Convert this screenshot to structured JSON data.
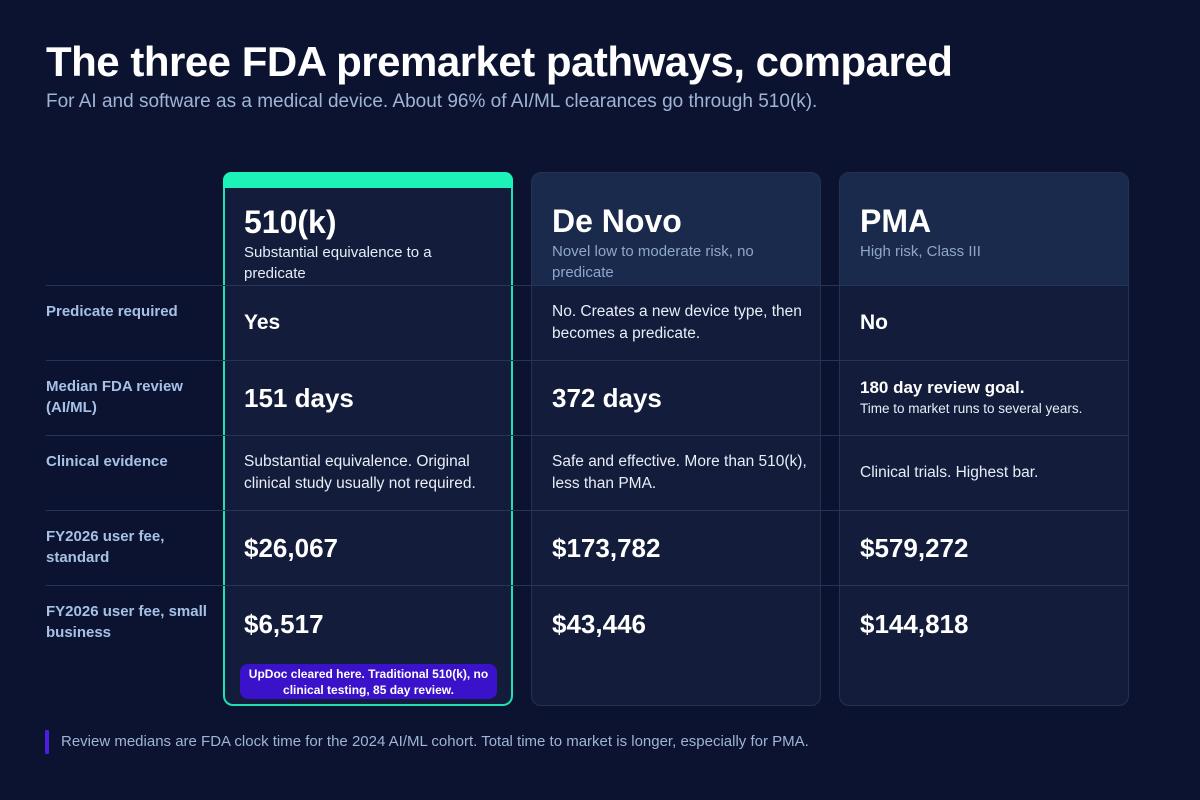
{
  "header": {
    "title": "The three FDA premarket pathways, compared",
    "subtitle": "For AI and software as a medical device. About 96% of AI/ML clearances go through 510(k)."
  },
  "columns": [
    {
      "title": "510(k)",
      "subtitle": "Substantial equivalence to a predicate",
      "highlighted": true,
      "accent": "#1df2b9"
    },
    {
      "title": "De Novo",
      "subtitle": "Novel low to moderate risk, no predicate"
    },
    {
      "title": "PMA",
      "subtitle": "High risk, Class III"
    }
  ],
  "rows": [
    {
      "label": "Predicate required",
      "cells": [
        "Yes",
        "No. Creates a new device type, then becomes a predicate.",
        "No"
      ]
    },
    {
      "label": "Median FDA review (AI/ML)",
      "cells": [
        "151 days",
        "372 days"
      ],
      "pma_strong": "180 day review goal.",
      "pma_note": "Time to market runs to several years."
    },
    {
      "label": "Clinical evidence",
      "cells": [
        "Substantial equivalence. Original clinical study usually not required.",
        "Safe and effective. More than 510(k), less than PMA.",
        "Clinical trials. Highest bar."
      ]
    },
    {
      "label": "FY2026 user fee, standard",
      "cells": [
        "$26,067",
        "$173,782",
        "$579,272"
      ]
    },
    {
      "label": "FY2026 user fee, small business",
      "cells": [
        "$6,517",
        "$43,446",
        "$144,818"
      ]
    }
  ],
  "callout": "UpDoc cleared here. Traditional 510(k), no clinical testing, 85 day review.",
  "footer": "Review medians are FDA clock time for the 2024 AI/ML cohort. Total time to market is longer, especially for PMA.",
  "colors": {
    "background": "#0c1330",
    "highlight_border": "#20e0b0",
    "callout": "#3a12c9",
    "label": "#a5c2e6"
  }
}
